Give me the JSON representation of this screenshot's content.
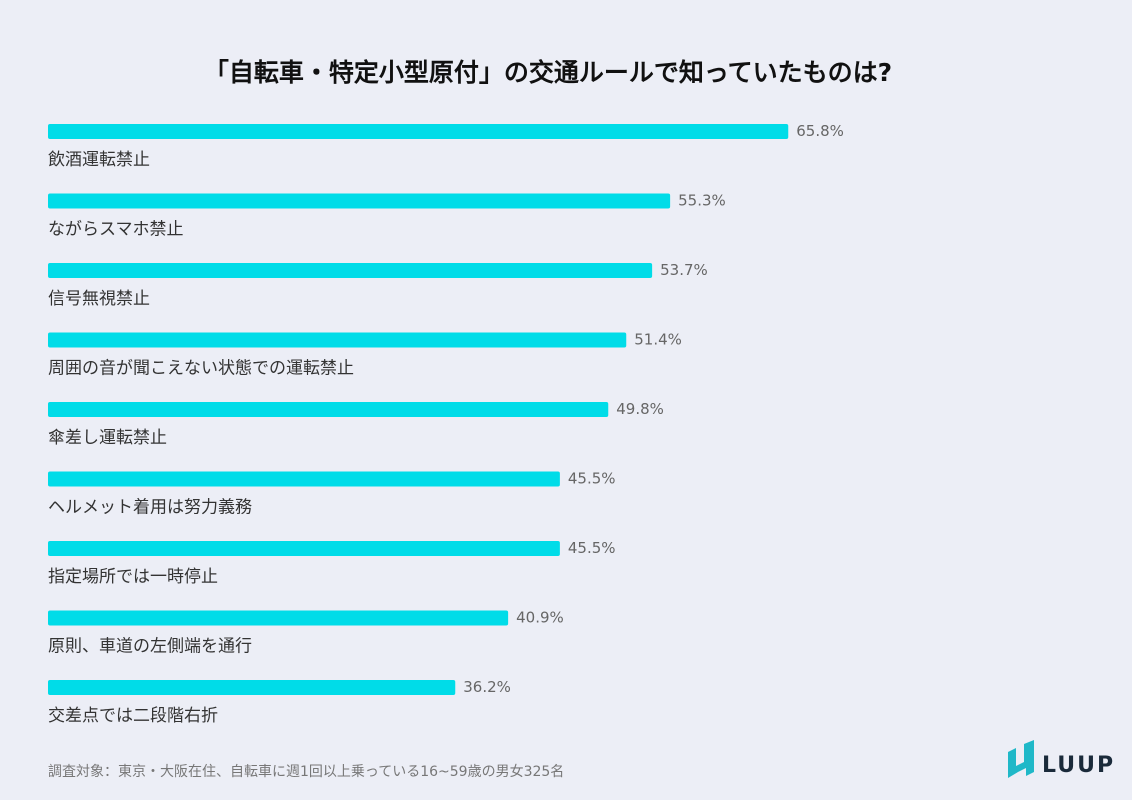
{
  "chart_data": {
    "type": "bar",
    "orientation": "horizontal",
    "title": "「自転車・特定小型原付」の交通ルールで知っていたものは?",
    "categories": [
      "飲酒運転禁止",
      "ながらスマホ禁止",
      "信号無視禁止",
      "周囲の音が聞こえない状態での運転禁止",
      "傘差し運転禁止",
      "ヘルメット着用は努力義務",
      "指定場所では一時停止",
      "原則、車道の左側端を通行",
      "交差点では二段階右折"
    ],
    "values": [
      65.8,
      55.3,
      53.7,
      51.4,
      49.8,
      45.5,
      45.5,
      40.9,
      36.2
    ],
    "value_labels": [
      "65.8%",
      "55.3%",
      "53.7%",
      "51.4%",
      "49.8%",
      "45.5%",
      "45.5%",
      "40.9%",
      "36.2%"
    ],
    "color": "#00dce8",
    "note": "調査対象：東京・大阪在住、自転車に週1回以上乗っている16~59歳の男女325名"
  },
  "logo": "LUUP"
}
